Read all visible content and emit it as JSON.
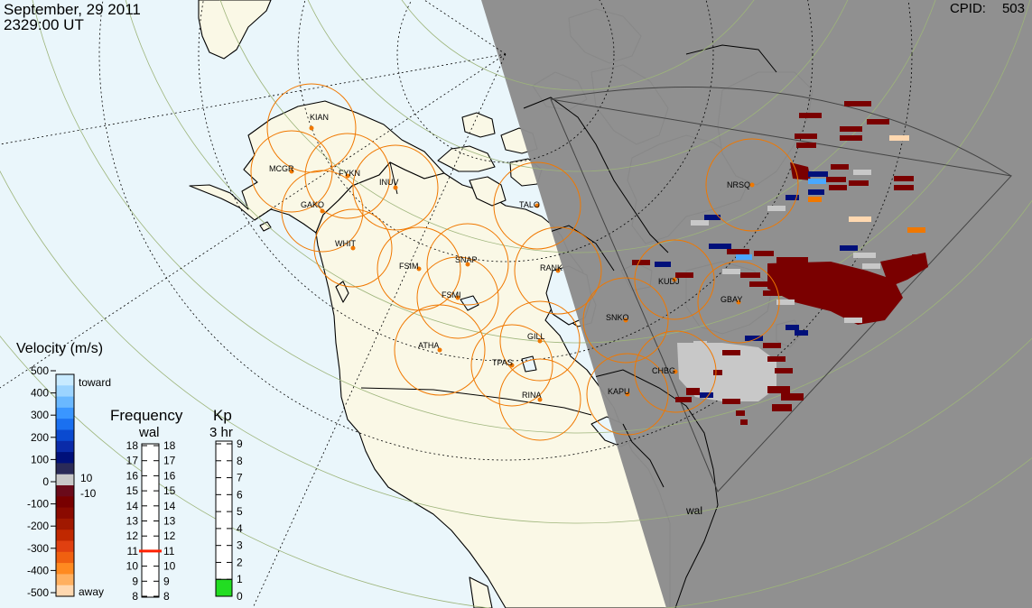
{
  "header": {
    "date": "September, 29 2011",
    "time": "2329:00 UT",
    "cpid_label": "CPID:",
    "cpid_value": "503"
  },
  "colors": {
    "ocean": "#eaf6fb",
    "land": "#faf8e6",
    "night": "#8c8c8c",
    "fov_circle": "#f07800",
    "radar_dot": "#f07800",
    "graticule": "#9db47a",
    "toward_dark": "#00107a",
    "away_dark": "#7a0000",
    "away_light": "#ffd8b0",
    "toward_light": "#b0e0ff",
    "ground_scatter": "#c8c8c8",
    "kp_fill": "#22dd22",
    "frequency_marker": "#ff2000"
  },
  "map": {
    "stations": [
      {
        "code": "KIAN"
      },
      {
        "code": "MCGR"
      },
      {
        "code": "FYKN"
      },
      {
        "code": "INUV"
      },
      {
        "code": "GAKO"
      },
      {
        "code": "WHIT"
      },
      {
        "code": "FSIM"
      },
      {
        "code": "SNAP"
      },
      {
        "code": "FSMI"
      },
      {
        "code": "TALO"
      },
      {
        "code": "RANK"
      },
      {
        "code": "KUDJ"
      },
      {
        "code": "GBAY"
      },
      {
        "code": "NRSQ"
      },
      {
        "code": "SNKO"
      },
      {
        "code": "ATHA"
      },
      {
        "code": "GILL"
      },
      {
        "code": "TPAS"
      },
      {
        "code": "CHBG"
      },
      {
        "code": "KAPU"
      },
      {
        "code": "RINA"
      }
    ],
    "radar_label": "wal"
  },
  "velocity_scale": {
    "title": "Velocity (m/s)",
    "ticks": [
      "500",
      "400",
      "300",
      "200",
      "100",
      "0",
      "-100",
      "-200",
      "-300",
      "-400",
      "-500"
    ],
    "toward_label": "toward",
    "away_label": "away",
    "pos_threshold": "10",
    "neg_threshold": "-10"
  },
  "frequency_scale": {
    "title": "Frequency",
    "subtitle": "wal",
    "ticks": [
      "18",
      "17",
      "16",
      "15",
      "14",
      "13",
      "12",
      "11",
      "10",
      "9",
      "8"
    ],
    "marker_value": 11
  },
  "kp_scale": {
    "title": "Kp",
    "subtitle": "3 hr",
    "ticks": [
      "9",
      "8",
      "7",
      "6",
      "5",
      "4",
      "3",
      "2",
      "1",
      "0"
    ],
    "value": 1
  }
}
